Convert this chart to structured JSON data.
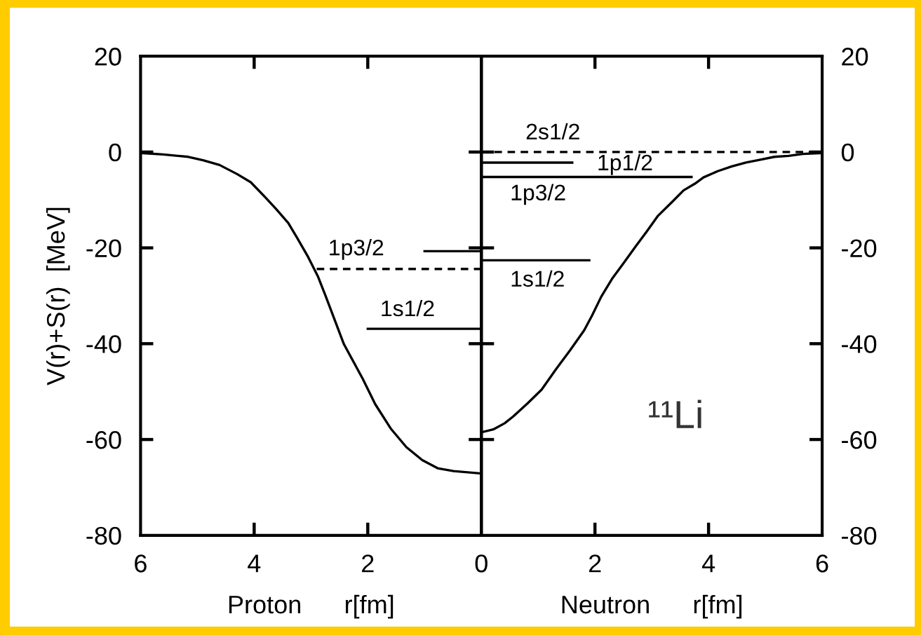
{
  "chart_data": [
    {
      "type": "line",
      "xlabel": "Proton      r[fm]",
      "ylabel": "V(r)+S(r)  [MeV]",
      "xlim": [
        6,
        0
      ],
      "xticks": [
        6,
        4,
        2,
        0
      ],
      "ylim": [
        -80,
        20
      ],
      "yticks": [
        -80,
        -60,
        -40,
        -20,
        0,
        20
      ],
      "series": [
        {
          "color": "#000000",
          "x": [
            6.0,
            5.6,
            5.16,
            4.9,
            4.61,
            4.3,
            4.06,
            3.8,
            3.62,
            3.4,
            3.24,
            3.05,
            2.88,
            2.75,
            2.42,
            2.09,
            1.87,
            1.59,
            1.32,
            1.04,
            0.77,
            0.49,
            0
          ],
          "values": [
            -0.2,
            -0.5,
            -1.0,
            -1.7,
            -2.7,
            -4.6,
            -6.3,
            -9.5,
            -11.8,
            -14.8,
            -18.0,
            -21.9,
            -25.9,
            -29.8,
            -40.1,
            -47.3,
            -52.6,
            -57.8,
            -61.6,
            -64.3,
            -66.0,
            -66.6,
            -67.1
          ]
        },
        {
          "name": "1p3/2",
          "color": "#000000",
          "line_style": "dashed",
          "x": [
            0,
            2.9
          ],
          "values": [
            -24.4,
            -24.4
          ]
        },
        {
          "color": "#000000",
          "x": [
            0,
            1.0
          ],
          "values": [
            -20.7,
            -20.7
          ]
        },
        {
          "name": "1s1/2",
          "color": "#000000",
          "x": [
            0,
            2.0
          ],
          "values": [
            -36.9,
            -36.9
          ]
        }
      ]
    },
    {
      "type": "line",
      "xlabel": "Neutron      r[fm]",
      "xlim": [
        0,
        6
      ],
      "xticks": [
        {
          "value": 0,
          "label": null
        },
        2,
        4,
        6
      ],
      "ylim": [
        -80,
        20
      ],
      "yticks": [
        -80,
        -60,
        -40,
        -20,
        0,
        20
      ],
      "series": [
        {
          "color": "#000000",
          "x": [
            0,
            0.21,
            0.41,
            0.56,
            0.81,
            1.06,
            1.31,
            1.56,
            1.81,
            1.95,
            2.11,
            2.31,
            2.51,
            2.71,
            2.91,
            3.11,
            3.36,
            3.56,
            3.76,
            3.91,
            4.16,
            4.41,
            4.66,
            4.91,
            5.16,
            5.41,
            5.66,
            6.0
          ],
          "values": [
            -58.5,
            -57.9,
            -56.6,
            -55.2,
            -52.5,
            -49.6,
            -45.4,
            -41.4,
            -37.2,
            -34.1,
            -30.2,
            -26.3,
            -23.1,
            -19.8,
            -16.6,
            -13.3,
            -10.4,
            -8.0,
            -6.6,
            -5.3,
            -4.0,
            -3.0,
            -2.2,
            -1.6,
            -1.0,
            -0.8,
            -0.4,
            -0.2
          ]
        },
        {
          "name": "2s1/2",
          "color": "#000000",
          "line_style": "dashed",
          "x": [
            0,
            6
          ],
          "values": [
            0,
            0
          ]
        },
        {
          "name": "1p1/2",
          "color": "#000000",
          "x": [
            0,
            1.6
          ],
          "values": [
            -2.2,
            -2.2
          ]
        },
        {
          "name": "1p3/2",
          "color": "#000000",
          "x": [
            0,
            3.7
          ],
          "values": [
            -5.2,
            -5.2
          ]
        },
        {
          "name": "1s1/2",
          "color": "#000000",
          "x": [
            0,
            1.9
          ],
          "values": [
            -22.6,
            -22.6
          ]
        }
      ],
      "annotations": [
        "¹¹Li"
      ]
    }
  ]
}
